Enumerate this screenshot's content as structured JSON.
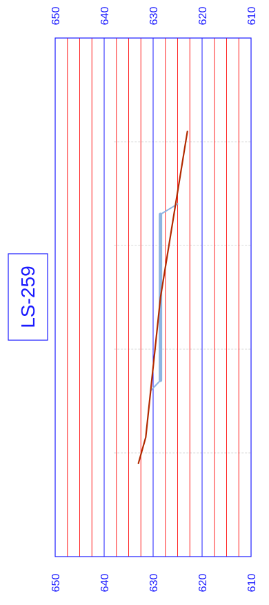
{
  "chart_data": {
    "type": "line",
    "orientation": "rotated",
    "title": "LS-259",
    "xlabel": "",
    "ylabel": "",
    "ylim": [
      610,
      650
    ],
    "y_ticks": [
      "650",
      "640",
      "630",
      "620",
      "610"
    ],
    "series": [
      {
        "style": "thick-light-blue",
        "color": "#8db4e2",
        "points": [
          [
            0.32,
            625.0
          ],
          [
            0.34,
            628.5
          ],
          [
            0.66,
            628.5
          ],
          [
            0.68,
            630.5
          ]
        ]
      },
      {
        "style": "brown",
        "color": "#b22a00",
        "points": [
          [
            0.18,
            623.0
          ],
          [
            0.5,
            628.5
          ],
          [
            0.77,
            631.5
          ],
          [
            0.82,
            633.0
          ]
        ]
      }
    ],
    "grid": true,
    "colors": {
      "frame": "#1a1aff",
      "major_grid": "#1a1aff",
      "minor_grid": "#ff2020",
      "vertical_guides": "#d9d9d9"
    }
  }
}
